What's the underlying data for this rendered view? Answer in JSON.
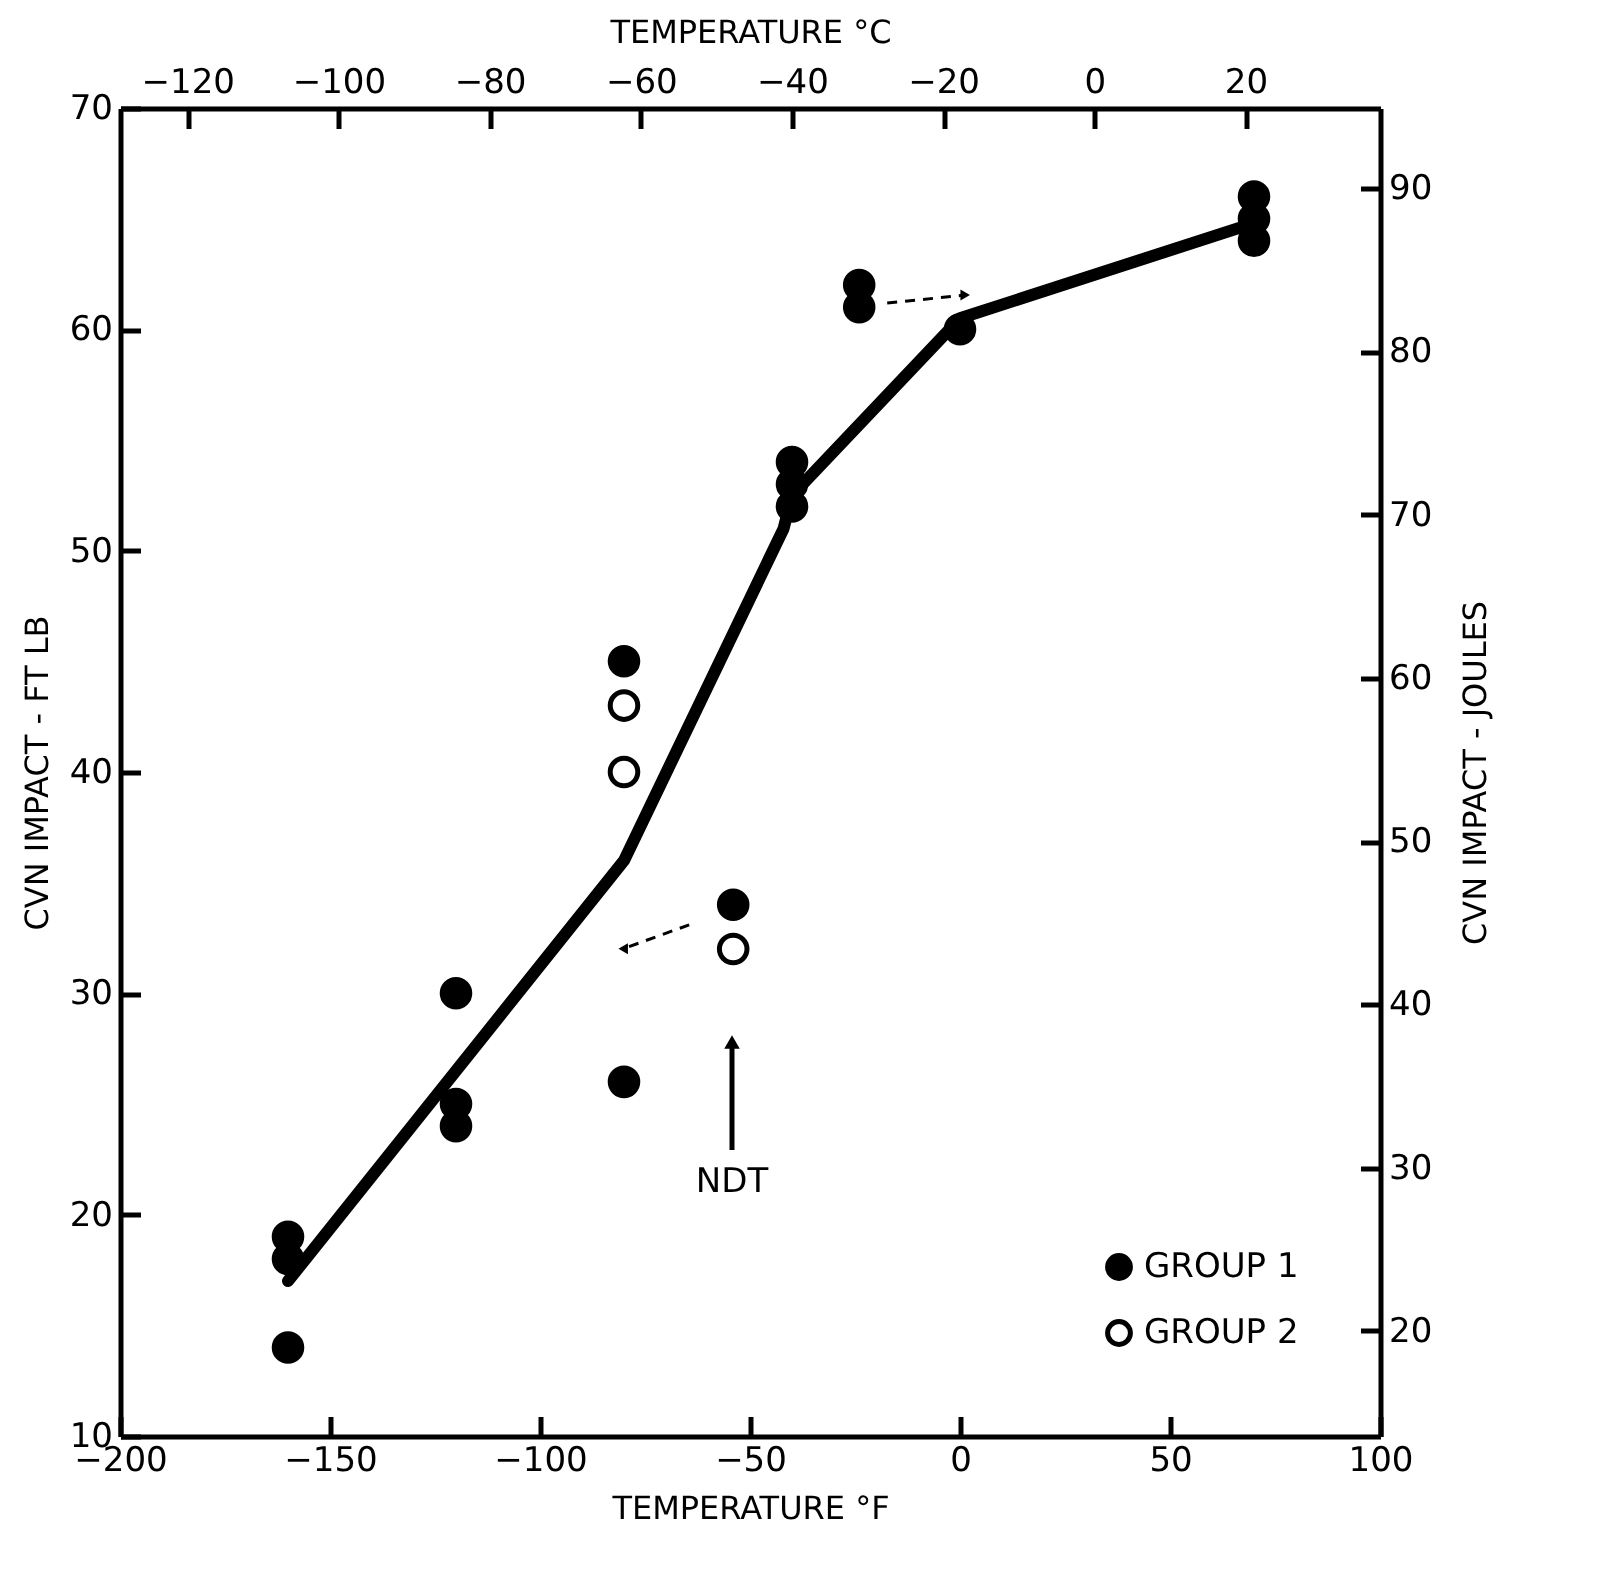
{
  "chart_data": {
    "type": "scatter",
    "xlabel": "TEMPERATURE °F",
    "x2label": "TEMPERATURE °C",
    "ylabel": "CVN IMPACT - FT LB",
    "y2label": "CVN IMPACT - JOULES",
    "xlim": [
      -200,
      100
    ],
    "xticks": [
      -200,
      -150,
      -100,
      -50,
      0,
      50,
      100
    ],
    "ylim": [
      10,
      70
    ],
    "yticks": [
      10,
      20,
      30,
      40,
      50,
      60,
      70
    ],
    "x2lim": [
      -128.9,
      37.8
    ],
    "x2ticks": [
      -120,
      -100,
      -80,
      -60,
      -40,
      -20,
      0,
      20
    ],
    "y2lim": [
      13.56,
      94.9
    ],
    "y2ticks": [
      20,
      30,
      40,
      50,
      60,
      70,
      80,
      90
    ],
    "series": [
      {
        "name": "GROUP 1",
        "color": "#000000",
        "x": [
          -160,
          -160,
          -160,
          -120,
          -120,
          -120,
          -80,
          -80,
          -54,
          -40,
          -40,
          -40,
          -24,
          -24,
          0,
          70,
          70,
          70
        ],
        "values": [
          19,
          18,
          14,
          30,
          25,
          24,
          45,
          26,
          34,
          54,
          53,
          52,
          62,
          61,
          60,
          66,
          65,
          64
        ]
      },
      {
        "name": "GROUP 2",
        "color": "#ffffff",
        "x": [
          -80,
          -80,
          -54
        ],
        "values": [
          43,
          40,
          32
        ]
      },
      {
        "type": "line",
        "color": "#000000",
        "marker": "none",
        "x": [
          -160,
          -80,
          -42,
          -40,
          0,
          70
        ],
        "values": [
          17,
          36,
          51,
          52.5,
          60.5,
          64.8
        ]
      }
    ],
    "annotations": [
      "NDT"
    ],
    "marker": "circle",
    "line_style": "solid",
    "legend": "bottom right",
    "grid": false
  }
}
